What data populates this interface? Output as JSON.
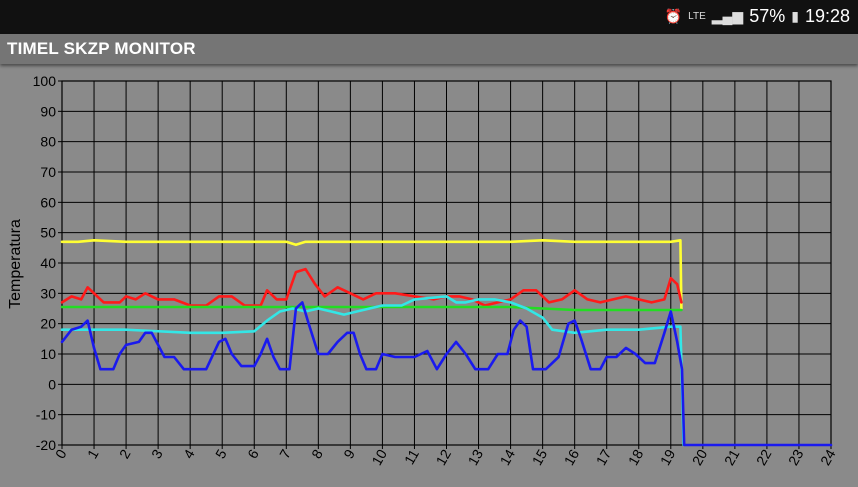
{
  "status_bar": {
    "battery": "57%",
    "time": "19:28",
    "network": "LTE"
  },
  "app_bar": {
    "title": "TIMEL SKZP MONITOR"
  },
  "chart_data": {
    "type": "line",
    "ylabel": "Temperatura",
    "xlim": [
      0,
      24
    ],
    "ylim": [
      -20,
      100
    ],
    "x_ticks": [
      0,
      1,
      2,
      3,
      4,
      5,
      6,
      7,
      8,
      9,
      10,
      11,
      12,
      13,
      14,
      15,
      16,
      17,
      18,
      19,
      20,
      21,
      22,
      23,
      24
    ],
    "y_ticks": [
      -20,
      -10,
      0,
      10,
      20,
      30,
      40,
      50,
      60,
      70,
      80,
      90,
      100
    ],
    "grid": true,
    "series": [
      {
        "color": "#ffff33",
        "points": [
          [
            0,
            47
          ],
          [
            0.5,
            47
          ],
          [
            1,
            47.5
          ],
          [
            2,
            47
          ],
          [
            3,
            47
          ],
          [
            4,
            47
          ],
          [
            5,
            47
          ],
          [
            6,
            47
          ],
          [
            7,
            47
          ],
          [
            7.3,
            46
          ],
          [
            7.6,
            47
          ],
          [
            8,
            47
          ],
          [
            9,
            47
          ],
          [
            10,
            47
          ],
          [
            11,
            47
          ],
          [
            12,
            47
          ],
          [
            13,
            47
          ],
          [
            14,
            47
          ],
          [
            15,
            47.5
          ],
          [
            16,
            47
          ],
          [
            17,
            47
          ],
          [
            18,
            47
          ],
          [
            19,
            47
          ],
          [
            19.3,
            47.5
          ],
          [
            19.33,
            25
          ]
        ]
      },
      {
        "color": "#ff1a1a",
        "points": [
          [
            0,
            27
          ],
          [
            0.3,
            29
          ],
          [
            0.6,
            28
          ],
          [
            0.8,
            32
          ],
          [
            1,
            30
          ],
          [
            1.3,
            27
          ],
          [
            1.8,
            27
          ],
          [
            2,
            29
          ],
          [
            2.3,
            28
          ],
          [
            2.6,
            30
          ],
          [
            3,
            28
          ],
          [
            3.5,
            28
          ],
          [
            4,
            26
          ],
          [
            4.5,
            26
          ],
          [
            4.9,
            29
          ],
          [
            5.3,
            29
          ],
          [
            5.7,
            26
          ],
          [
            6.2,
            26
          ],
          [
            6.4,
            31
          ],
          [
            6.7,
            28
          ],
          [
            7,
            28
          ],
          [
            7.3,
            37
          ],
          [
            7.6,
            38
          ],
          [
            7.9,
            33
          ],
          [
            8.2,
            29
          ],
          [
            8.6,
            32
          ],
          [
            9,
            30
          ],
          [
            9.4,
            28
          ],
          [
            9.8,
            30
          ],
          [
            10.4,
            30
          ],
          [
            11,
            29
          ],
          [
            11.6,
            28
          ],
          [
            12,
            29
          ],
          [
            12.4,
            29
          ],
          [
            12.8,
            28
          ],
          [
            13.2,
            26
          ],
          [
            13.6,
            27
          ],
          [
            14,
            28
          ],
          [
            14.4,
            31
          ],
          [
            14.8,
            31
          ],
          [
            15.2,
            27
          ],
          [
            15.6,
            28
          ],
          [
            16,
            31
          ],
          [
            16.4,
            28
          ],
          [
            16.8,
            27
          ],
          [
            17.2,
            28
          ],
          [
            17.6,
            29
          ],
          [
            18,
            28
          ],
          [
            18.4,
            27
          ],
          [
            18.8,
            28
          ],
          [
            19,
            35
          ],
          [
            19.2,
            33
          ],
          [
            19.33,
            27
          ]
        ]
      },
      {
        "color": "#22dd22",
        "points": [
          [
            0,
            25.5
          ],
          [
            2,
            25.5
          ],
          [
            4,
            25.5
          ],
          [
            6,
            25.5
          ],
          [
            8,
            25.5
          ],
          [
            10,
            25.5
          ],
          [
            12,
            25.5
          ],
          [
            14,
            25.5
          ],
          [
            15,
            25
          ],
          [
            16,
            24.5
          ],
          [
            18,
            24.5
          ],
          [
            19.33,
            24.5
          ]
        ]
      },
      {
        "color": "#33e6e6",
        "points": [
          [
            0,
            18
          ],
          [
            2,
            18
          ],
          [
            4,
            17
          ],
          [
            5,
            17
          ],
          [
            6,
            17.5
          ],
          [
            6.4,
            21
          ],
          [
            6.8,
            24
          ],
          [
            7.2,
            25
          ],
          [
            7.6,
            24
          ],
          [
            8,
            25
          ],
          [
            8.4,
            24
          ],
          [
            8.8,
            23
          ],
          [
            9.2,
            24
          ],
          [
            9.6,
            25
          ],
          [
            10,
            26
          ],
          [
            10.6,
            26
          ],
          [
            11,
            28
          ],
          [
            12,
            29
          ],
          [
            12.3,
            27
          ],
          [
            12.6,
            27
          ],
          [
            13,
            28
          ],
          [
            13.5,
            28
          ],
          [
            14,
            27
          ],
          [
            14.5,
            25
          ],
          [
            15,
            22
          ],
          [
            15.3,
            18
          ],
          [
            16,
            17
          ],
          [
            17,
            18
          ],
          [
            18,
            18
          ],
          [
            19,
            19
          ],
          [
            19.3,
            19
          ],
          [
            19.4,
            -20
          ]
        ]
      },
      {
        "color": "#1a1aee",
        "points": [
          [
            0,
            14
          ],
          [
            0.3,
            18
          ],
          [
            0.6,
            19
          ],
          [
            0.8,
            21
          ],
          [
            1,
            12
          ],
          [
            1.2,
            5
          ],
          [
            1.6,
            5
          ],
          [
            1.8,
            10
          ],
          [
            2,
            13
          ],
          [
            2.4,
            14
          ],
          [
            2.6,
            17
          ],
          [
            2.8,
            17
          ],
          [
            3,
            13
          ],
          [
            3.2,
            9
          ],
          [
            3.5,
            9
          ],
          [
            3.8,
            5
          ],
          [
            4.2,
            5
          ],
          [
            4.5,
            5
          ],
          [
            4.9,
            14
          ],
          [
            5.1,
            15
          ],
          [
            5.3,
            10
          ],
          [
            5.6,
            6
          ],
          [
            6,
            6
          ],
          [
            6.2,
            10
          ],
          [
            6.4,
            15
          ],
          [
            6.6,
            9
          ],
          [
            6.8,
            5
          ],
          [
            7.1,
            5
          ],
          [
            7.3,
            25
          ],
          [
            7.5,
            27
          ],
          [
            7.7,
            20
          ],
          [
            8,
            10
          ],
          [
            8.3,
            10
          ],
          [
            8.6,
            14
          ],
          [
            8.9,
            17
          ],
          [
            9.1,
            17
          ],
          [
            9.3,
            10
          ],
          [
            9.5,
            5
          ],
          [
            9.8,
            5
          ],
          [
            10,
            10
          ],
          [
            10.4,
            9
          ],
          [
            11,
            9
          ],
          [
            11.4,
            11
          ],
          [
            11.7,
            5
          ],
          [
            12,
            10
          ],
          [
            12.3,
            14
          ],
          [
            12.6,
            10
          ],
          [
            12.9,
            5
          ],
          [
            13.3,
            5
          ],
          [
            13.6,
            10
          ],
          [
            13.9,
            10
          ],
          [
            14.1,
            18
          ],
          [
            14.3,
            21
          ],
          [
            14.5,
            19
          ],
          [
            14.7,
            5
          ],
          [
            15.1,
            5
          ],
          [
            15.5,
            9
          ],
          [
            15.8,
            20
          ],
          [
            16,
            21
          ],
          [
            16.2,
            15
          ],
          [
            16.5,
            5
          ],
          [
            16.8,
            5
          ],
          [
            17,
            9
          ],
          [
            17.3,
            9
          ],
          [
            17.6,
            12
          ],
          [
            17.9,
            10
          ],
          [
            18.2,
            7
          ],
          [
            18.5,
            7
          ],
          [
            18.8,
            17
          ],
          [
            19,
            24
          ],
          [
            19.2,
            14
          ],
          [
            19.35,
            5
          ],
          [
            19.42,
            -20
          ],
          [
            24,
            -20
          ]
        ]
      }
    ]
  }
}
